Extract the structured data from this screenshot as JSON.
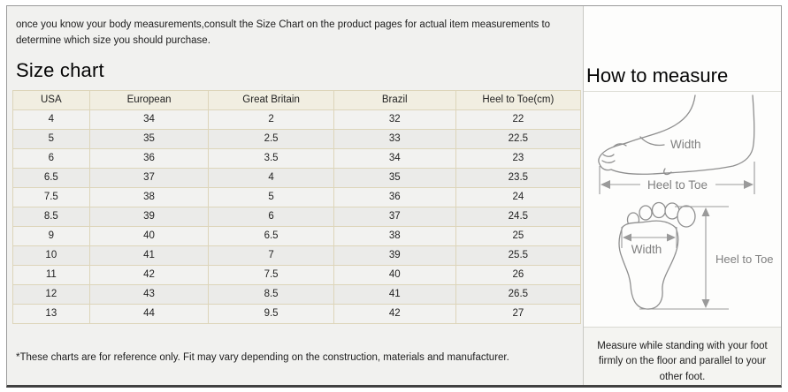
{
  "intro": "once you know your body measurements,consult the Size Chart on the product pages for actual item measurements to determine which size you should purchase.",
  "left": {
    "title": "Size chart",
    "table": {
      "headers": [
        "USA",
        "European",
        "Great Britain",
        "Brazil",
        "Heel to Toe(cm)"
      ],
      "rows": [
        [
          "4",
          "34",
          "2",
          "32",
          "22"
        ],
        [
          "5",
          "35",
          "2.5",
          "33",
          "22.5"
        ],
        [
          "6",
          "36",
          "3.5",
          "34",
          "23"
        ],
        [
          "6.5",
          "37",
          "4",
          "35",
          "23.5"
        ],
        [
          "7.5",
          "38",
          "5",
          "36",
          "24"
        ],
        [
          "8.5",
          "39",
          "6",
          "37",
          "24.5"
        ],
        [
          "9",
          "40",
          "6.5",
          "38",
          "25"
        ],
        [
          "10",
          "41",
          "7",
          "39",
          "25.5"
        ],
        [
          "11",
          "42",
          "7.5",
          "40",
          "26"
        ],
        [
          "12",
          "43",
          "8.5",
          "41",
          "26.5"
        ],
        [
          "13",
          "44",
          "9.5",
          "42",
          "27"
        ]
      ]
    },
    "footnote": "*These charts are for reference only. Fit may vary depending on the construction, materials and manufacturer."
  },
  "right": {
    "title": "How to measure",
    "side_view": {
      "width_label": "Width",
      "length_label": "Heel to Toe"
    },
    "sole_view": {
      "width_label": "Width",
      "length_label": "Heel to Toe"
    },
    "instruction": "Measure while standing with your foot firmly on the floor and parallel to your other foot."
  },
  "colors": {
    "table_border": "#ddd5ba",
    "table_header_bg": "#f1eee1",
    "row_odd": "#f2f2f0",
    "row_even": "#ebebe9",
    "left_bg": "#f1f1ef",
    "right_bg": "#fdfdfc",
    "frame_border": "#9b9b9b",
    "diagram_stroke": "#8f8f8f"
  }
}
